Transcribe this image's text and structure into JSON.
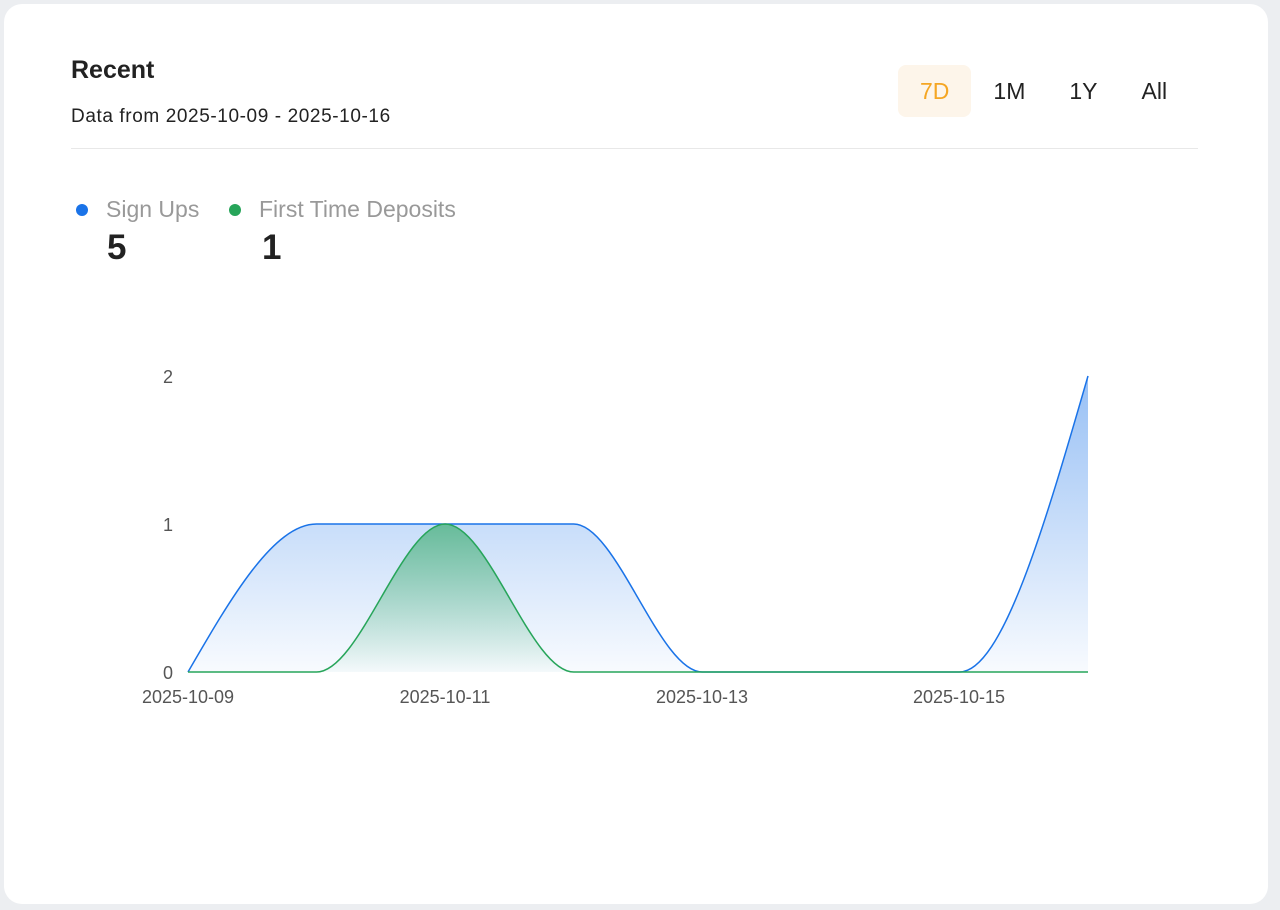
{
  "header": {
    "title": "Recent",
    "subtitle": "Data from 2025-10-09 - 2025-10-16"
  },
  "ranges": [
    {
      "label": "7D",
      "active": true
    },
    {
      "label": "1M",
      "active": false
    },
    {
      "label": "1Y",
      "active": false
    },
    {
      "label": "All",
      "active": false
    }
  ],
  "accent_color": "#f5a623",
  "chart_data": {
    "type": "area",
    "x": [
      "2025-10-09",
      "2025-10-10",
      "2025-10-11",
      "2025-10-12",
      "2025-10-13",
      "2025-10-14",
      "2025-10-15",
      "2025-10-16"
    ],
    "x_tick_labels": [
      "2025-10-09",
      "2025-10-11",
      "2025-10-13",
      "2025-10-15"
    ],
    "y_tick_labels": [
      "0",
      "1",
      "2"
    ],
    "ylim": [
      0,
      2
    ],
    "grid": false,
    "legend_position": "top-left",
    "series": [
      {
        "name": "Sign Ups",
        "total": "5",
        "color": "#1a73e8",
        "values": [
          0,
          1,
          1,
          1,
          0,
          0,
          0,
          2
        ]
      },
      {
        "name": "First Time Deposits",
        "total": "1",
        "color": "#27a55a",
        "values": [
          0,
          0,
          1,
          0,
          0,
          0,
          0,
          0
        ]
      }
    ]
  }
}
